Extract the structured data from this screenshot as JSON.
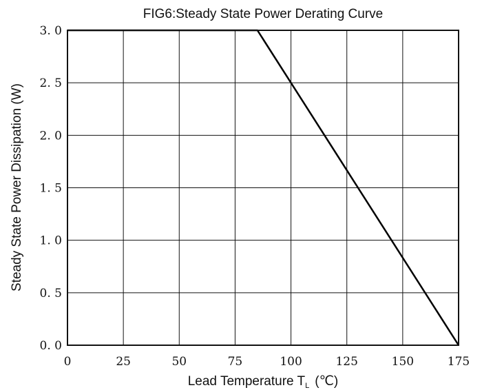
{
  "chart_data": {
    "type": "line",
    "title": "FIG6:Steady State Power Derating Curve",
    "xlabel": "Lead Temperature T",
    "xlabel_subscript": "L",
    "xlabel_unit": "(℃)",
    "ylabel": "Steady State Power Dissipation (W)",
    "xlim": [
      0,
      175
    ],
    "ylim": [
      0,
      3.0
    ],
    "x_ticks": [
      0,
      25,
      50,
      75,
      100,
      125,
      150,
      175
    ],
    "y_ticks": [
      0,
      0.5,
      1.0,
      1.5,
      2.0,
      2.5,
      3.0
    ],
    "x_tick_labels": [
      "0",
      "25",
      "50",
      "75",
      "100",
      "125",
      "150",
      "175"
    ],
    "y_tick_labels": [
      "0. 0",
      "0. 5",
      "1. 0",
      "1. 5",
      "2. 0",
      "2. 5",
      "3. 0"
    ],
    "grid": true,
    "series": [
      {
        "x": [
          0,
          85,
          175
        ],
        "y": [
          3.0,
          3.0,
          0.0
        ],
        "color": "#000000"
      }
    ]
  }
}
